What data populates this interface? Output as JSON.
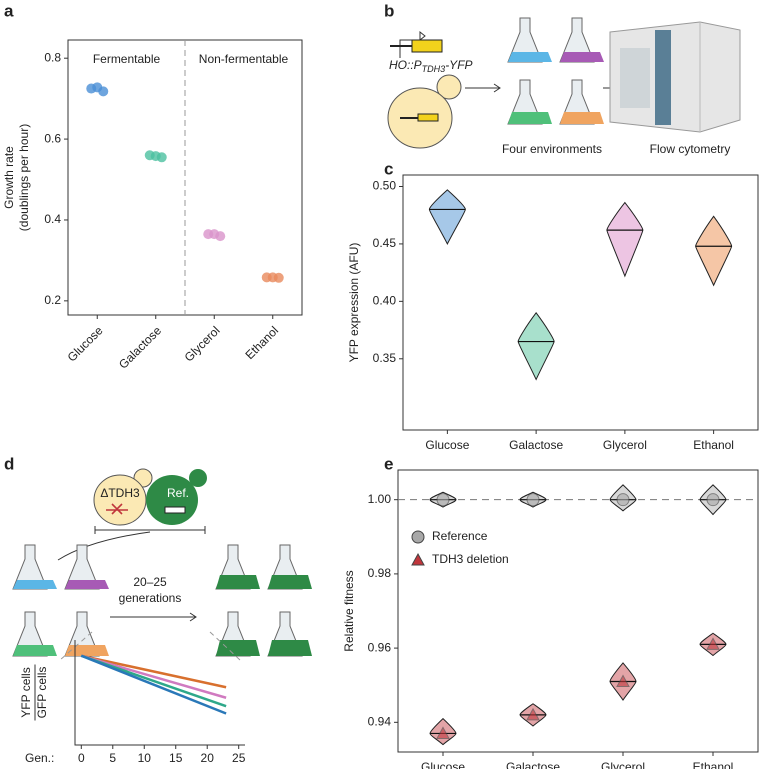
{
  "panel_labels": [
    "a",
    "b",
    "c",
    "d",
    "e"
  ],
  "diagram_b": {
    "construct": "HO::P",
    "construct_subscript": "TDH3",
    "construct_suffix": "-YFP",
    "steps": [
      "Four environments",
      "Flow cytometry"
    ]
  },
  "diagram_d": {
    "strains": [
      "ΔTDH3",
      "Ref."
    ],
    "arrow_label": [
      "20–25",
      "generations"
    ]
  },
  "chart_data": [
    {
      "type": "strip",
      "y_label": [
        "Growth rate",
        "(doublings per hour)"
      ],
      "annotations": [
        "Fermentable",
        "Non-fermentable"
      ],
      "categories": [
        "Glucose",
        "Galactose",
        "Glycerol",
        "Ethanol"
      ],
      "colors": [
        "#4a8fd6",
        "#4cc0a0",
        "#d993cb",
        "#e98a5c"
      ],
      "values": [
        [
          0.725,
          0.728,
          0.718
        ],
        [
          0.56,
          0.558,
          0.555
        ],
        [
          0.365,
          0.365,
          0.36
        ],
        [
          0.258,
          0.258,
          0.257
        ]
      ],
      "x_label_rotation": -45,
      "ylim": [
        0.165,
        0.845
      ],
      "yticks": [
        0.2,
        0.4,
        0.6,
        0.8
      ]
    },
    {
      "type": "violin",
      "y_label": [
        "YFP expression (AFU)"
      ],
      "categories": [
        "Glucose",
        "Galactose",
        "Glycerol",
        "Ethanol"
      ],
      "colors": [
        "#3a86cc",
        "#3dbb8e",
        "#d77fc0",
        "#e8803a"
      ],
      "median": [
        0.48,
        0.365,
        0.462,
        0.448
      ],
      "min": [
        0.45,
        0.332,
        0.422,
        0.414
      ],
      "max": [
        0.497,
        0.39,
        0.486,
        0.474
      ],
      "ylim": [
        0.288,
        0.51
      ],
      "yticks": [
        0.35,
        {
          "value": 0.4,
          "label": "0.40"
        },
        0.45,
        {
          "value": 0.5,
          "label": "0.50"
        }
      ]
    },
    {
      "type": "violin",
      "y_label": [
        "Relative fitness"
      ],
      "categories": [
        "Glucose",
        "Galactose",
        "Glycerol",
        "Ethanol"
      ],
      "series": [
        {
          "name": "Reference",
          "color": "#a8a8a8",
          "marker": "circle",
          "median": [
            1,
            1,
            1,
            1
          ],
          "min": [
            0.998,
            0.998,
            0.997,
            0.996
          ],
          "max": [
            1.002,
            1.002,
            1.004,
            1.004
          ]
        },
        {
          "name": "TDH3 deletion",
          "color": "#c0363c",
          "marker": "triangle",
          "median": [
            0.937,
            0.942,
            0.951,
            0.961
          ],
          "min": [
            0.934,
            0.939,
            0.946,
            0.958
          ],
          "max": [
            0.941,
            0.945,
            0.956,
            0.964
          ]
        }
      ],
      "hline": 1,
      "ylim": [
        0.932,
        1.008
      ],
      "yticks": [
        0.94,
        0.96,
        0.98,
        {
          "value": 1,
          "label": "1.00"
        }
      ]
    },
    {
      "type": "line",
      "x_label": "Gen.:",
      "y_label": [
        "YFP cells",
        "GFP cells"
      ],
      "x": [
        0,
        23
      ],
      "series": [
        {
          "color": "#d8702e",
          "values": [
            0.85,
            0.55
          ]
        },
        {
          "color": "#d07ac0",
          "values": [
            0.85,
            0.45
          ]
        },
        {
          "color": "#2ea88a",
          "values": [
            0.85,
            0.37
          ]
        },
        {
          "color": "#2a78b8",
          "values": [
            0.85,
            0.3
          ]
        }
      ],
      "xlim": [
        -1,
        26
      ],
      "xticks": [
        0,
        5,
        10,
        15,
        20,
        25
      ],
      "ylim": [
        0,
        1
      ]
    }
  ]
}
